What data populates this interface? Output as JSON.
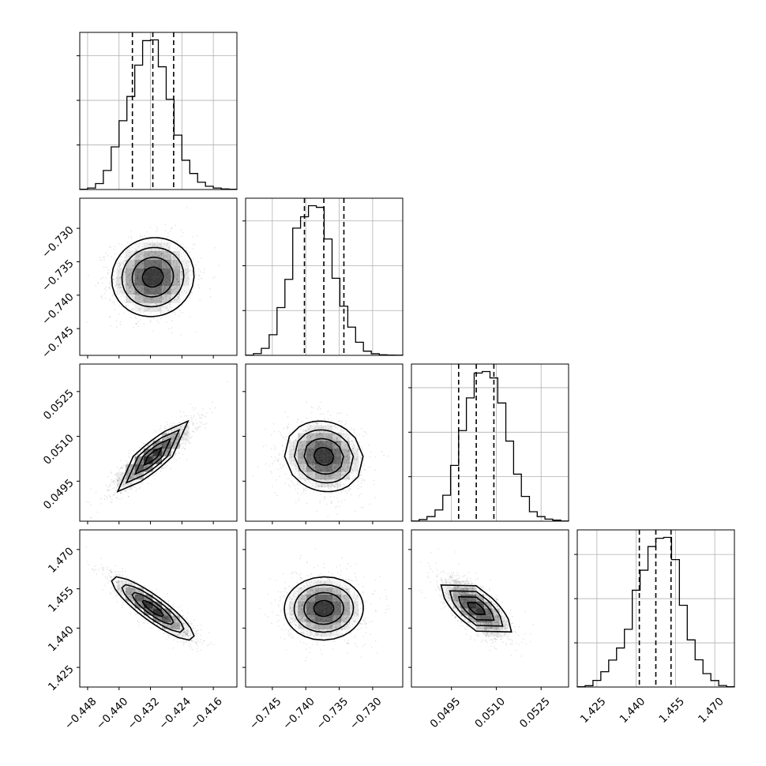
{
  "chart_data": {
    "type": "corner",
    "parameters": [
      {
        "range": [
          -0.45,
          -0.41
        ],
        "ticks": [
          -0.448,
          -0.44,
          -0.432,
          -0.424,
          -0.416
        ],
        "tick_labels": [
          "−0.448",
          "−0.440",
          "−0.432",
          "−0.424",
          "−0.416"
        ],
        "quantiles": [
          -0.4366,
          -0.4314,
          -0.4261
        ],
        "marginal": {
          "bin_edges": [
            -0.45,
            -0.448,
            -0.446,
            -0.444,
            -0.442,
            -0.44,
            -0.438,
            -0.436,
            -0.434,
            -0.432,
            -0.43,
            -0.428,
            -0.426,
            -0.424,
            -0.422,
            -0.42,
            -0.418,
            -0.416,
            -0.414,
            -0.412,
            -0.41
          ],
          "counts": [
            2,
            10,
            40,
            128,
            287,
            463,
            626,
            837,
            1002,
            1007,
            826,
            607,
            366,
            197,
            108,
            49,
            22,
            10,
            4,
            2
          ]
        }
      },
      {
        "range": [
          -0.749,
          -0.7255
        ],
        "ticks": [
          -0.745,
          -0.74,
          -0.735,
          -0.73
        ],
        "tick_labels": [
          "−0.745",
          "−0.740",
          "−0.735",
          "−0.730"
        ],
        "quantiles": [
          -0.7402,
          -0.7373,
          -0.7343
        ],
        "marginal": {
          "bin_edges": [
            -0.749,
            -0.74782,
            -0.74665,
            -0.74548,
            -0.7443,
            -0.74312,
            -0.74195,
            -0.74078,
            -0.7396,
            -0.73842,
            -0.73725,
            -0.73607,
            -0.7349,
            -0.73372,
            -0.73255,
            -0.73138,
            -0.7302,
            -0.72902,
            -0.72785,
            -0.72668,
            -0.7255
          ],
          "counts": [
            1,
            12,
            47,
            138,
            320,
            509,
            852,
            928,
            1002,
            991,
            779,
            516,
            329,
            189,
            88,
            28,
            11,
            4,
            2,
            1
          ]
        }
      },
      {
        "range": [
          0.04816,
          0.05342
        ],
        "ticks": [
          0.0495,
          0.051,
          0.0525
        ],
        "tick_labels": [
          "0.0495",
          "0.0510",
          "0.0525"
        ],
        "quantiles": [
          0.04974,
          0.05033,
          0.05092
        ],
        "marginal": {
          "bin_edges": [
            0.04816,
            0.04842,
            0.04868,
            0.04895,
            0.04921,
            0.04947,
            0.04974,
            0.05,
            0.05026,
            0.05053,
            0.05079,
            0.05105,
            0.05132,
            0.05158,
            0.05184,
            0.05211,
            0.05237,
            0.05263,
            0.05289,
            0.05316,
            0.05342
          ],
          "counts": [
            1,
            11,
            31,
            76,
            175,
            376,
            611,
            831,
            999,
            1009,
            966,
            797,
            540,
            317,
            167,
            64,
            31,
            14,
            7,
            1
          ]
        }
      },
      {
        "range": [
          1.4175,
          1.4775
        ],
        "ticks": [
          1.425,
          1.44,
          1.455,
          1.47
        ],
        "tick_labels": [
          "1.425",
          "1.440",
          "1.455",
          "1.470"
        ],
        "quantiles": [
          1.4412,
          1.4475,
          1.4533
        ],
        "marginal": {
          "bin_edges": [
            1.4175,
            1.4205,
            1.4235,
            1.4265,
            1.4295,
            1.4325,
            1.4355,
            1.4385,
            1.4415,
            1.4445,
            1.4475,
            1.4505,
            1.4535,
            1.4565,
            1.4595,
            1.4625,
            1.4655,
            1.4685,
            1.4715,
            1.4745,
            1.4775
          ],
          "counts": [
            2,
            9,
            45,
            104,
            183,
            265,
            392,
            657,
            793,
            954,
            1010,
            1016,
            865,
            555,
            320,
            185,
            91,
            44,
            10,
            2
          ]
        }
      }
    ],
    "joint": [
      {
        "x": 0,
        "y": 1,
        "correlation": 0.05,
        "levels": [
          0.5,
          1.0,
          1.5,
          2.0
        ]
      },
      {
        "x": 0,
        "y": 2,
        "correlation": 0.88,
        "levels": [
          0.5,
          1.0,
          1.5,
          2.0
        ]
      },
      {
        "x": 1,
        "y": 2,
        "correlation": -0.1,
        "levels": [
          0.5,
          1.0,
          1.5,
          2.0
        ]
      },
      {
        "x": 0,
        "y": 3,
        "correlation": -0.88,
        "levels": [
          0.5,
          1.0,
          1.5,
          2.0
        ]
      },
      {
        "x": 1,
        "y": 3,
        "correlation": 0.02,
        "levels": [
          0.5,
          1.0,
          1.5,
          2.0
        ]
      },
      {
        "x": 2,
        "y": 3,
        "correlation": -0.7,
        "levels": [
          0.5,
          1.0,
          1.5,
          2.0
        ]
      }
    ],
    "grid": true,
    "histogram_style": "step",
    "contour_levels_sigma": [
      0.5,
      1.0,
      1.5,
      2.0
    ],
    "colors": {
      "line": "#000000",
      "grid": "#b0b0b0",
      "density": "#000000"
    }
  }
}
